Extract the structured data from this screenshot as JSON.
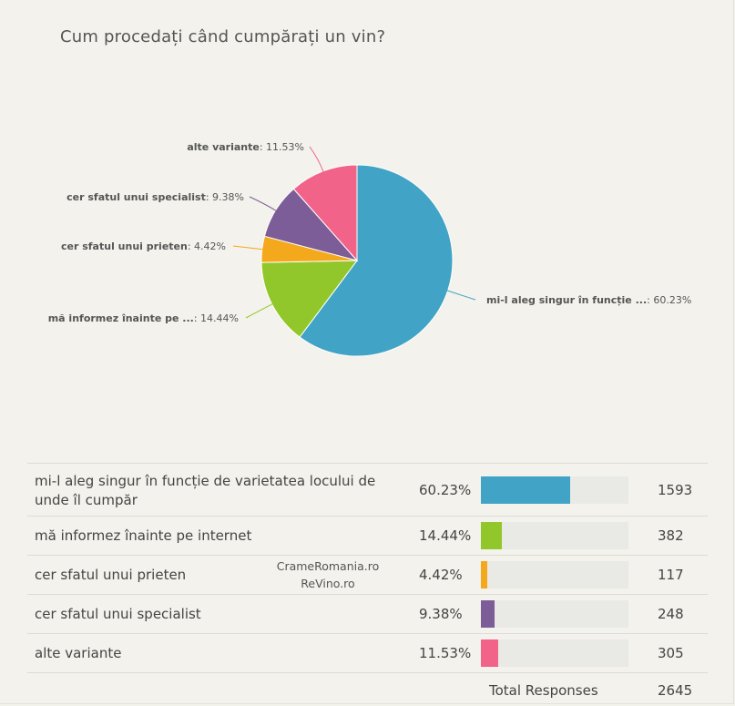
{
  "title": "Cum procedați când cumpărați un vin?",
  "chart_data": {
    "type": "pie",
    "title": "Cum procedați când cumpărați un vin?",
    "slices": [
      {
        "label": "mi-l aleg singur în funcție de varietatea locului de unde îl cumpăr",
        "short_label": "mi-l aleg singur în funcție ...",
        "value": 60.23,
        "value_label": "60.23%",
        "pct_label": ": 60.23%",
        "count": "1593",
        "color": "#41a3c5"
      },
      {
        "label": "mă informez înainte pe internet",
        "short_label": "mă informez înainte pe ...",
        "value": 14.44,
        "value_label": "14.44%",
        "pct_label": ": 14.44%",
        "count": "382",
        "color": "#92c72b"
      },
      {
        "label": "cer sfatul unui prieten",
        "short_label": "cer sfatul unui prieten",
        "value": 4.42,
        "value_label": "4.42%",
        "pct_label": ": 4.42%",
        "count": "117",
        "color": "#f4a81c"
      },
      {
        "label": "cer sfatul unui specialist",
        "short_label": "cer sfatul unui specialist",
        "value": 9.38,
        "value_label": "9.38%",
        "pct_label": ": 9.38%",
        "count": "248",
        "color": "#7c5d97"
      },
      {
        "label": "alte variante",
        "short_label": "alte variante",
        "value": 11.53,
        "value_label": "11.53%",
        "pct_label": ": 11.53%",
        "count": "305",
        "color": "#f26389"
      }
    ]
  },
  "table": {
    "total_label": "Total Responses",
    "total_value": "2645"
  },
  "watermark": {
    "line1": "CrameRomania.ro",
    "line2": "ReVino.ro"
  }
}
